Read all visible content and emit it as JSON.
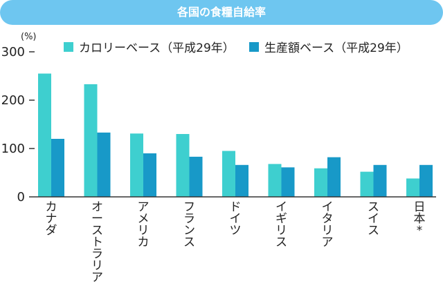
{
  "chart_data": {
    "type": "bar",
    "title": "各国の食糧自給率",
    "unit_label": "(%)",
    "categories": [
      "カナダ",
      "オーストラリア",
      "アメリカ",
      "フランス",
      "ドイツ",
      "イギリス",
      "イタリア",
      "スイス",
      "日本*"
    ],
    "series": [
      {
        "name": "カロリーベース（平成29年）",
        "color": "#3ecfcf",
        "values": [
          255,
          233,
          131,
          130,
          95,
          68,
          59,
          52,
          38
        ]
      },
      {
        "name": "生産額ベース（平成29年）",
        "color": "#1899c8",
        "values": [
          120,
          133,
          90,
          83,
          66,
          61,
          82,
          66,
          66
        ]
      }
    ],
    "yticks": [
      0,
      100,
      200,
      300
    ],
    "ylim": [
      0,
      300
    ],
    "xlabel": "",
    "ylabel": "",
    "grid": false,
    "legend_position": "top-right"
  }
}
